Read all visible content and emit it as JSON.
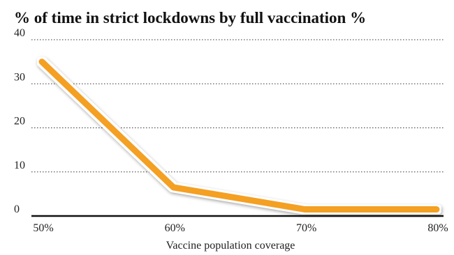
{
  "chart_data": {
    "type": "line",
    "title": "% of time in strict lockdowns by full vaccination %",
    "x_label": "Vaccine population coverage",
    "categories": [
      "50%",
      "60%",
      "70%",
      "80%"
    ],
    "series": [
      {
        "name": null,
        "color": "#f4a024",
        "values": [
          35,
          6.5,
          1.5,
          1.5
        ]
      }
    ],
    "ylim": [
      0,
      40
    ],
    "yticks": [
      0,
      10,
      20,
      30,
      40
    ],
    "grid": true
  }
}
